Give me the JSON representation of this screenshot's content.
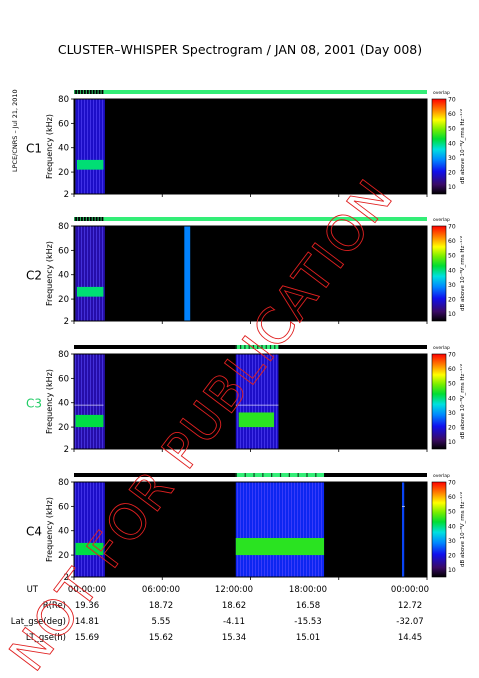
{
  "title": "CLUSTER–WHISPER Spectrogram / JAN 08, 2001 (Day 008)",
  "side_credit": "LPCE/CNRS – Jul 21, 2010",
  "watermark": "NOT FOR PUBLICATION",
  "colors": {
    "plot_background": "#000000",
    "mode_green": "#33ee77",
    "mode_black": "#000000",
    "c3_label": "#22cc66",
    "watermark": "#e02020"
  },
  "chart_data": {
    "type": "heatmap",
    "panels": [
      {
        "label": "C1",
        "ylabel": "Frequency (kHz)",
        "yticks": [
          "2",
          "20",
          "40",
          "60",
          "80"
        ],
        "ylim": [
          2,
          80
        ],
        "xlim_hours": [
          0,
          24
        ],
        "colorbar": {
          "title": "dB above 10⁻⁸V_rms Hz⁻¹ᐟ²",
          "ticks": [
            "10",
            "20",
            "30",
            "40",
            "50",
            "60",
            "70"
          ],
          "range": [
            5,
            70
          ],
          "mode_label": "overlap"
        },
        "mode_bar": {
          "base": "green",
          "black_segments": [
            [
              0.0,
              2.0
            ]
          ]
        },
        "activity": [
          {
            "t": [
              0.1,
              2.1
            ],
            "fmin": 2,
            "fmax": 80,
            "level": 18
          },
          {
            "t": [
              0.2,
              2.0
            ],
            "fmin": 22,
            "fmax": 30,
            "level": 40
          }
        ],
        "lines": []
      },
      {
        "label": "C2",
        "ylabel": "Frequency (kHz)",
        "yticks": [
          "2",
          "20",
          "40",
          "60",
          "80"
        ],
        "ylim": [
          2,
          80
        ],
        "xlim_hours": [
          0,
          24
        ],
        "colorbar": {
          "title": "dB above 10⁻⁸V_rms Hz⁻¹ᐟ²",
          "ticks": [
            "10",
            "20",
            "30",
            "40",
            "50",
            "60",
            "70"
          ],
          "range": [
            5,
            70
          ],
          "mode_label": "overlap"
        },
        "mode_bar": {
          "base": "green",
          "black_segments": [
            [
              0.0,
              2.0
            ]
          ]
        },
        "activity": [
          {
            "t": [
              0.1,
              2.1
            ],
            "fmin": 2,
            "fmax": 80,
            "level": 16
          },
          {
            "t": [
              0.2,
              2.0
            ],
            "fmin": 22,
            "fmax": 30,
            "level": 40
          },
          {
            "t": [
              7.5,
              7.9
            ],
            "fmin": 2,
            "fmax": 80,
            "level": 28
          }
        ],
        "lines": []
      },
      {
        "label": "C3",
        "ylabel": "Frequency (kHz)",
        "yticks": [
          "2",
          "20",
          "40",
          "60",
          "80"
        ],
        "ylim": [
          2,
          80
        ],
        "xlim_hours": [
          0,
          24
        ],
        "colorbar": {
          "title": "dB above 10⁻⁸V_rms Hz⁻¹ᐟ²",
          "ticks": [
            "10",
            "20",
            "30",
            "40",
            "50",
            "60",
            "70"
          ],
          "range": [
            5,
            70
          ],
          "mode_label": "overlap"
        },
        "mode_bar": {
          "base": "black",
          "green_segments": [
            [
              11.0,
              13.9
            ]
          ]
        },
        "activity": [
          {
            "t": [
              0.0,
              2.1
            ],
            "fmin": 2,
            "fmax": 80,
            "level": 16
          },
          {
            "t": [
              0.1,
              2.0
            ],
            "fmin": 20,
            "fmax": 30,
            "level": 42
          },
          {
            "t": [
              11.0,
              13.9
            ],
            "fmin": 2,
            "fmax": 80,
            "level": 18
          },
          {
            "t": [
              11.2,
              13.6
            ],
            "fmin": 20,
            "fmax": 32,
            "level": 45
          }
        ],
        "lines": [
          {
            "t": [
              0.0,
              2.0
            ],
            "f": 38
          },
          {
            "t": [
              11.0,
              13.9
            ],
            "f": 38
          }
        ]
      },
      {
        "label": "C4",
        "ylabel": "Frequency (kHz)",
        "yticks": [
          "2",
          "20",
          "40",
          "60",
          "80"
        ],
        "ylim": [
          2,
          80
        ],
        "xlim_hours": [
          0,
          24
        ],
        "colorbar": {
          "title": "dB above 10⁻⁸V_rms Hz⁻¹ᐟ²",
          "ticks": [
            "10",
            "20",
            "30",
            "40",
            "50",
            "60",
            "70"
          ],
          "range": [
            5,
            70
          ],
          "mode_label": "overlap"
        },
        "mode_bar": {
          "base": "black",
          "green_segments": [
            [
              11.0,
              17.0
            ]
          ]
        },
        "activity": [
          {
            "t": [
              0.0,
              2.1
            ],
            "fmin": 2,
            "fmax": 80,
            "level": 18
          },
          {
            "t": [
              0.1,
              2.0
            ],
            "fmin": 20,
            "fmax": 30,
            "level": 42
          },
          {
            "t": [
              11.0,
              17.0
            ],
            "fmin": 2,
            "fmax": 80,
            "level": 22
          },
          {
            "t": [
              11.0,
              17.0
            ],
            "fmin": 20,
            "fmax": 34,
            "level": 45
          },
          {
            "t": [
              22.3,
              22.45
            ],
            "fmin": 2,
            "fmax": 80,
            "level": 24
          }
        ],
        "lines": [
          {
            "t": [
              22.3,
              22.5
            ],
            "f": 60
          }
        ]
      }
    ],
    "orbit_table": {
      "rows": [
        {
          "label": "UT",
          "values": [
            "00:00:00",
            "06:00:00",
            "12:00:00",
            "18:00:00",
            "00:00:00"
          ]
        },
        {
          "label": "R(Re)",
          "values": [
            "19.36",
            "18.72",
            "18.62",
            "16.58",
            "12.72"
          ]
        },
        {
          "label": "Lat_gse(deg)",
          "values": [
            "14.81",
            "5.55",
            "-4.11",
            "-15.53",
            "-32.07"
          ]
        },
        {
          "label": "LT_gse(h)",
          "values": [
            "15.69",
            "15.62",
            "15.34",
            "15.01",
            "14.45"
          ]
        }
      ]
    }
  }
}
